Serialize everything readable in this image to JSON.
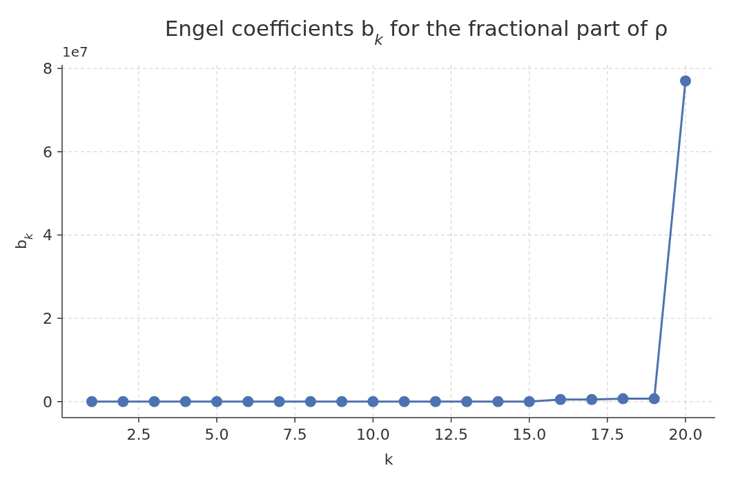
{
  "chart_data": {
    "type": "line",
    "title": "Engel coefficients b$_{k}$ for the fractional part of ρ",
    "xlabel": "k",
    "ylabel": "b$_{k}$",
    "annotations": [
      "1e7"
    ],
    "x": [
      1,
      2,
      3,
      4,
      5,
      6,
      7,
      8,
      9,
      10,
      11,
      12,
      13,
      14,
      15,
      16,
      17,
      18,
      19,
      20
    ],
    "series": [
      {
        "color": "#4c72b0",
        "values": [
          0,
          0,
          0,
          0,
          0,
          0,
          0,
          0,
          0,
          0,
          0,
          0,
          0,
          0,
          0,
          0.05,
          0.05,
          0.07,
          0.07,
          7.7
        ]
      }
    ],
    "xlim": [
      0.05,
      20.95
    ],
    "ylim": [
      -0.385,
      8.085
    ],
    "xticks": [
      {
        "value": 2.5,
        "label": "2.5"
      },
      {
        "value": 5,
        "label": "5.0"
      },
      {
        "value": 7.5,
        "label": "7.5"
      },
      {
        "value": 10,
        "label": "10.0"
      },
      {
        "value": 12.5,
        "label": "12.5"
      },
      {
        "value": 15,
        "label": "15.0"
      },
      {
        "value": 17.5,
        "label": "17.5"
      },
      {
        "value": 20,
        "label": "20.0"
      }
    ],
    "yticks": [
      0,
      2,
      4,
      6,
      8
    ],
    "grid": true,
    "marker": "circle",
    "line_style": "solid"
  }
}
